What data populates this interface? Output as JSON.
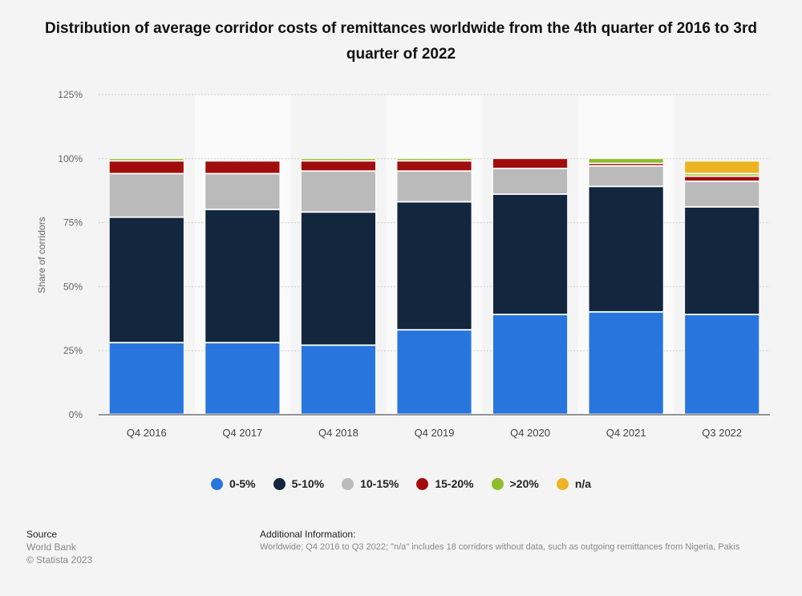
{
  "chart_data": {
    "type": "bar",
    "stacked": true,
    "title": "Distribution of average corridor costs of remittances worldwide from the 4th quarter of 2016 to 3rd quarter of 2022",
    "xlabel": "",
    "ylabel": "Share of corridors",
    "ylim": [
      0,
      125
    ],
    "yticks": [
      "0%",
      "25%",
      "50%",
      "75%",
      "100%",
      "125%"
    ],
    "grid": true,
    "legend_position": "bottom",
    "categories": [
      "Q4 2016",
      "Q4 2017",
      "Q4 2018",
      "Q4 2019",
      "Q4 2020",
      "Q4 2021",
      "Q3 2022"
    ],
    "series": [
      {
        "name": "0-5%",
        "color": "#2876dd",
        "values": [
          28,
          28,
          27,
          33,
          39,
          40,
          39
        ]
      },
      {
        "name": "5-10%",
        "color": "#12263d",
        "values": [
          49,
          52,
          52,
          50,
          47,
          49,
          42
        ]
      },
      {
        "name": "10-15%",
        "color": "#bababa",
        "values": [
          17,
          14,
          16,
          12,
          10,
          8,
          10
        ]
      },
      {
        "name": "15-20%",
        "color": "#a10d0d",
        "values": [
          5,
          5,
          4,
          4,
          4,
          1,
          2
        ]
      },
      {
        "name": ">20%",
        "color": "#8dbd2b",
        "values": [
          1,
          0,
          1,
          1,
          0,
          2,
          1
        ]
      },
      {
        "name": "n/a",
        "color": "#ecb424",
        "values": [
          0,
          0,
          0,
          0,
          0,
          0,
          5
        ]
      }
    ]
  },
  "footer": {
    "source_label": "Source",
    "source": "World Bank",
    "copyright": "© Statista 2023",
    "additional_label": "Additional Information:",
    "additional": "Worldwide; Q4 2016 to Q3 2022; \"n/a\" includes 18 corridors without data, such as outgoing remittances from Nigeria, Pakis"
  }
}
